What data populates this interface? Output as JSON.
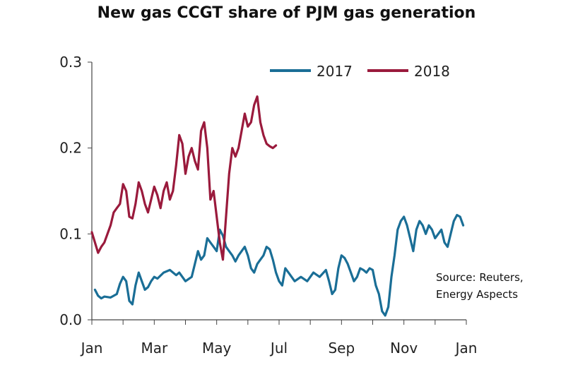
{
  "chart_data": {
    "type": "line",
    "title": "New gas CCGT share of PJM gas generation",
    "xlabel": "",
    "ylabel": "",
    "ylim": [
      0,
      0.3
    ],
    "y_ticks": [
      "0.0",
      "0.1",
      "0.2",
      "0.3"
    ],
    "y_tick_values": [
      0,
      0.1,
      0.2,
      0.3
    ],
    "x_ticks": [
      "Jan",
      "Mar",
      "May",
      "Jul",
      "Sep",
      "Nov",
      "Jan"
    ],
    "x_tick_values": [
      0,
      2,
      4,
      6,
      8,
      10,
      12
    ],
    "xlim": [
      0,
      12
    ],
    "grid": false,
    "legend_position": "top-right",
    "series": [
      {
        "name": "2017",
        "color": "#1a6e96",
        "x": [
          0.1,
          0.2,
          0.3,
          0.4,
          0.6,
          0.8,
          0.9,
          1.0,
          1.1,
          1.2,
          1.3,
          1.4,
          1.5,
          1.6,
          1.7,
          1.8,
          1.9,
          2.0,
          2.1,
          2.3,
          2.5,
          2.7,
          2.8,
          3.0,
          3.2,
          3.3,
          3.4,
          3.5,
          3.6,
          3.7,
          3.8,
          3.9,
          4.0,
          4.1,
          4.2,
          4.3,
          4.4,
          4.5,
          4.6,
          4.7,
          4.8,
          4.9,
          5.0,
          5.1,
          5.2,
          5.3,
          5.4,
          5.5,
          5.6,
          5.7,
          5.8,
          5.9,
          6.0,
          6.1,
          6.2,
          6.3,
          6.5,
          6.7,
          6.9,
          7.1,
          7.3,
          7.5,
          7.6,
          7.7,
          7.8,
          7.9,
          8.0,
          8.1,
          8.2,
          8.3,
          8.4,
          8.5,
          8.6,
          8.7,
          8.8,
          8.9,
          9.0,
          9.1,
          9.2,
          9.3,
          9.4,
          9.5,
          9.6,
          9.7,
          9.8,
          9.9,
          10.0,
          10.1,
          10.2,
          10.3,
          10.4,
          10.5,
          10.6,
          10.7,
          10.8,
          10.9,
          11.0,
          11.1,
          11.2,
          11.3,
          11.4,
          11.5,
          11.6,
          11.7,
          11.8,
          11.9
        ],
        "values": [
          0.035,
          0.028,
          0.025,
          0.027,
          0.026,
          0.03,
          0.042,
          0.05,
          0.045,
          0.022,
          0.018,
          0.04,
          0.055,
          0.045,
          0.035,
          0.038,
          0.045,
          0.05,
          0.048,
          0.055,
          0.058,
          0.052,
          0.055,
          0.045,
          0.05,
          0.065,
          0.08,
          0.07,
          0.075,
          0.095,
          0.09,
          0.085,
          0.08,
          0.105,
          0.098,
          0.085,
          0.08,
          0.075,
          0.068,
          0.075,
          0.08,
          0.085,
          0.075,
          0.06,
          0.055,
          0.065,
          0.07,
          0.075,
          0.085,
          0.082,
          0.07,
          0.055,
          0.045,
          0.04,
          0.06,
          0.055,
          0.045,
          0.05,
          0.045,
          0.055,
          0.05,
          0.058,
          0.045,
          0.03,
          0.035,
          0.06,
          0.075,
          0.072,
          0.065,
          0.055,
          0.045,
          0.05,
          0.06,
          0.058,
          0.055,
          0.06,
          0.058,
          0.04,
          0.03,
          0.01,
          0.005,
          0.015,
          0.05,
          0.075,
          0.105,
          0.115,
          0.12,
          0.11,
          0.095,
          0.08,
          0.105,
          0.115,
          0.11,
          0.1,
          0.11,
          0.105,
          0.095,
          0.1,
          0.105,
          0.09,
          0.085,
          0.1,
          0.115,
          0.122,
          0.12,
          0.11
        ]
      },
      {
        "name": "2018",
        "color": "#9a1a3c",
        "x": [
          0.0,
          0.1,
          0.2,
          0.3,
          0.4,
          0.5,
          0.6,
          0.7,
          0.8,
          0.9,
          1.0,
          1.1,
          1.2,
          1.3,
          1.4,
          1.5,
          1.6,
          1.7,
          1.8,
          1.9,
          2.0,
          2.1,
          2.2,
          2.3,
          2.4,
          2.5,
          2.6,
          2.7,
          2.8,
          2.9,
          3.0,
          3.1,
          3.2,
          3.3,
          3.4,
          3.5,
          3.6,
          3.7,
          3.8,
          3.9,
          4.0,
          4.1,
          4.2,
          4.3,
          4.4,
          4.5,
          4.6,
          4.7,
          4.8,
          4.9,
          5.0,
          5.1,
          5.2,
          5.3,
          5.4,
          5.5,
          5.6,
          5.7,
          5.8,
          5.9
        ],
        "values": [
          0.102,
          0.09,
          0.078,
          0.085,
          0.09,
          0.1,
          0.11,
          0.125,
          0.13,
          0.135,
          0.158,
          0.15,
          0.12,
          0.118,
          0.135,
          0.16,
          0.15,
          0.135,
          0.125,
          0.14,
          0.155,
          0.145,
          0.13,
          0.15,
          0.16,
          0.14,
          0.15,
          0.18,
          0.215,
          0.205,
          0.17,
          0.19,
          0.2,
          0.185,
          0.175,
          0.22,
          0.23,
          0.2,
          0.14,
          0.15,
          0.12,
          0.09,
          0.07,
          0.12,
          0.17,
          0.2,
          0.19,
          0.2,
          0.22,
          0.24,
          0.225,
          0.23,
          0.25,
          0.26,
          0.23,
          0.215,
          0.205,
          0.202,
          0.2,
          0.203
        ]
      }
    ],
    "annotations": [
      "Source:  Reuters,",
      "Energy Aspects"
    ]
  }
}
